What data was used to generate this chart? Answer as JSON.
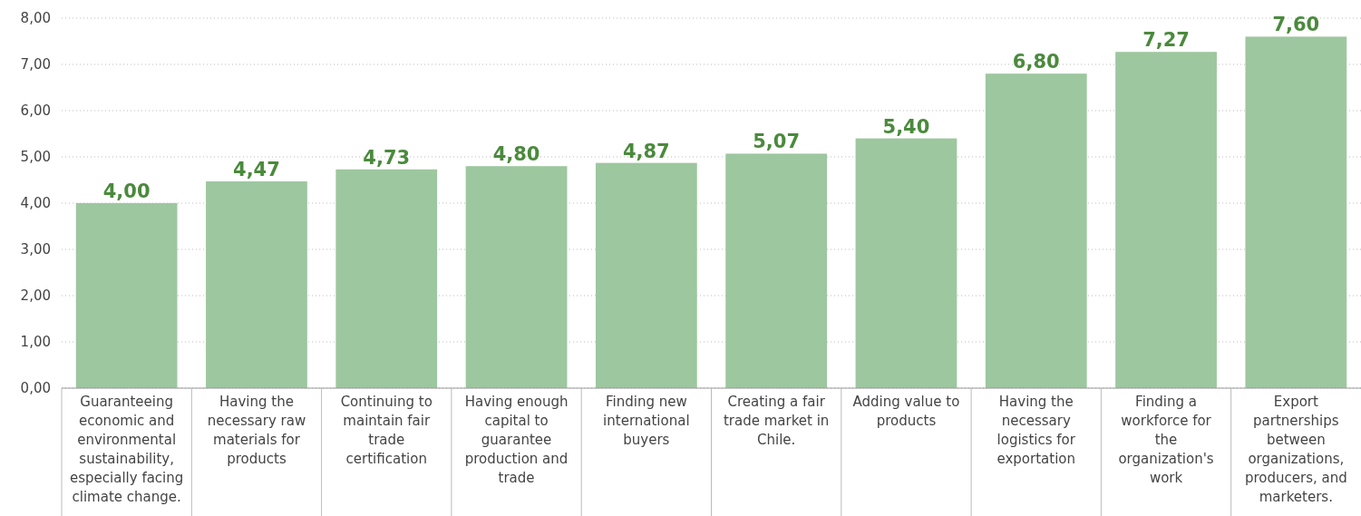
{
  "chart_data": {
    "type": "bar",
    "categories": [
      "Guaranteeing economic and environmental sustainability, especially facing climate change.",
      "Having the necessary raw materials for products",
      "Continuing to maintain fair trade certification",
      "Having enough capital to guarantee production and trade",
      "Finding new international buyers",
      "Creating a fair trade market in Chile.",
      "Adding value to products",
      "Having the necessary logistics for exportation",
      "Finding a workforce for the organization's work",
      "Export partnerships between organizations, producers, and marketers."
    ],
    "values": [
      4.0,
      4.47,
      4.73,
      4.8,
      4.87,
      5.07,
      5.4,
      6.8,
      7.27,
      7.6
    ],
    "value_labels": [
      "4,00",
      "4,47",
      "4,73",
      "4,80",
      "4,87",
      "5,07",
      "5,40",
      "6,80",
      "7,27",
      "7,60"
    ],
    "color": "#9dc79f",
    "ylim": [
      0,
      8
    ],
    "yticks": [
      {
        "value": 0,
        "label": "0,00"
      },
      {
        "value": 1,
        "label": "1,00"
      },
      {
        "value": 2,
        "label": "2,00"
      },
      {
        "value": 3,
        "label": "3,00"
      },
      {
        "value": 4,
        "label": "4,00"
      },
      {
        "value": 5,
        "label": "5,00"
      },
      {
        "value": 6,
        "label": "6,00"
      },
      {
        "value": 7,
        "label": "7,00"
      },
      {
        "value": 8,
        "label": "8,00"
      }
    ],
    "grid": "y"
  }
}
